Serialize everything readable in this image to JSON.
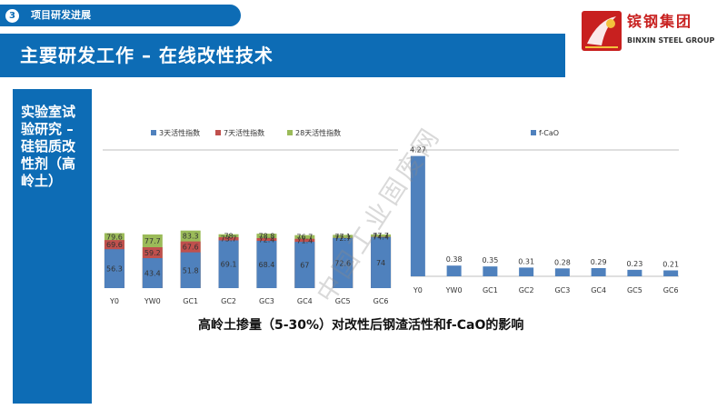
{
  "header": {
    "section_number": "3",
    "section_label": "项目研发进展",
    "title": "主要研发工作 – 在线改性技术"
  },
  "logo": {
    "name_cn": "镔钢集团",
    "name_en": "BINXIN STEEL GROUP",
    "icon": "binxin-logo-icon"
  },
  "sidebar": {
    "text": "实验室试验研究 – 硅铝质改性剂（高岭土）"
  },
  "caption": "高岭土掺量（5-30%）对改性后钢渣活性和f-CaO的影响",
  "watermark": "中国工业固废网",
  "colors": {
    "brand_blue": "#0d6cb5",
    "logo_red": "#c8201f",
    "series_3d": "#4f81bd",
    "series_7d": "#c0504d",
    "series_28d": "#9bbb59"
  },
  "chart_data": [
    {
      "type": "bar",
      "stacked": true,
      "categories": [
        "Y0",
        "YW0",
        "GC1",
        "GC2",
        "GC3",
        "GC4",
        "GC5",
        "GC6"
      ],
      "series": [
        {
          "name": "3天活性指数",
          "values": [
            56.3,
            43.4,
            51.8,
            69.1,
            68.4,
            67,
            72.6,
            74
          ]
        },
        {
          "name": "7天活性指数",
          "values": [
            69.6,
            59.2,
            67.6,
            73.7,
            72.4,
            71.4,
            72.7,
            74.4
          ]
        },
        {
          "name": "28天活性指数",
          "values": [
            79.6,
            77.7,
            83.3,
            78,
            78.8,
            76.7,
            77.1,
            77.7
          ]
        }
      ],
      "legend": "top",
      "grid": false
    },
    {
      "type": "bar",
      "categories": [
        "Y0",
        "YW0",
        "GC1",
        "GC2",
        "GC3",
        "GC4",
        "GC5",
        "GC6"
      ],
      "series": [
        {
          "name": "f-CaO",
          "values": [
            4.27,
            0.38,
            0.35,
            0.31,
            0.28,
            0.29,
            0.23,
            0.21
          ]
        }
      ],
      "legend": "top-left",
      "grid": false
    }
  ]
}
